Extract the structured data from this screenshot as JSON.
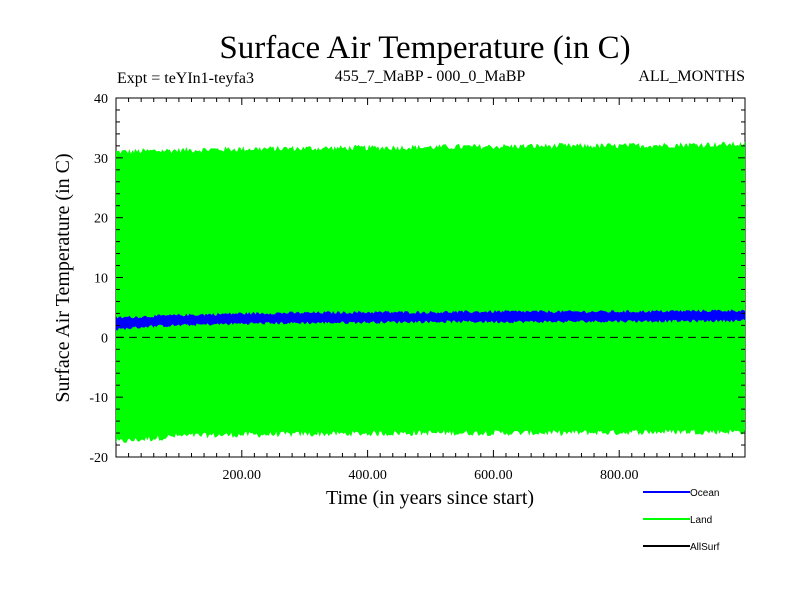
{
  "chart_data": {
    "type": "area",
    "title": "Surface Air Temperature (in C)",
    "subtitle_left": "Expt = teYIn1-teyfa3",
    "subtitle_center": "455_7_MaBP - 000_0_MaBP",
    "subtitle_right": "ALL_MONTHS",
    "xlabel": "Time (in years since start)",
    "ylabel": "Surface Air Temperature (in C)",
    "xlim": [
      0,
      1000
    ],
    "ylim": [
      -20,
      40
    ],
    "xticks": [
      200,
      400,
      600,
      800
    ],
    "xtick_labels": [
      "200.00",
      "400.00",
      "600.00",
      "800.00"
    ],
    "yticks": [
      -20,
      -10,
      0,
      10,
      20,
      30,
      40
    ],
    "ytick_labels": [
      "-20",
      "-10",
      "0",
      "10",
      "20",
      "30",
      "40"
    ],
    "reference_line": {
      "y": 0,
      "style": "dashed"
    },
    "series": [
      {
        "name": "Land",
        "color": "#00ff00",
        "description": "seasonal oscillation band (min/max envelope)",
        "x": [
          0,
          100,
          200,
          300,
          400,
          500,
          600,
          700,
          800,
          900,
          1000
        ],
        "upper": [
          31.0,
          31.3,
          31.5,
          31.6,
          31.7,
          31.8,
          31.9,
          32.0,
          32.0,
          32.2,
          32.3
        ],
        "lower": [
          -17.5,
          -16.5,
          -16.3,
          -16.2,
          -16.1,
          -16.0,
          -16.0,
          -16.0,
          -15.9,
          -15.8,
          -15.8
        ]
      },
      {
        "name": "Ocean",
        "color": "#0000ff",
        "description": "seasonal oscillation band (min/max envelope)",
        "x": [
          0,
          50,
          100,
          200,
          300,
          400,
          500,
          600,
          700,
          800,
          900,
          1000
        ],
        "upper": [
          3.3,
          3.5,
          3.7,
          4.0,
          4.1,
          4.2,
          4.2,
          4.3,
          4.3,
          4.3,
          4.4,
          4.5
        ],
        "lower": [
          1.3,
          1.8,
          2.0,
          2.3,
          2.4,
          2.5,
          2.6,
          2.6,
          2.6,
          2.7,
          2.7,
          2.8
        ]
      },
      {
        "name": "AllSurf",
        "color": "#000000",
        "description": "not visible in plot area",
        "x": [],
        "values": []
      }
    ],
    "legend": {
      "placement": "bottom-right",
      "entries": [
        {
          "label": "Ocean",
          "color": "#0000ff"
        },
        {
          "label": "Land",
          "color": "#00ff00"
        },
        {
          "label": "AllSurf",
          "color": "#000000"
        }
      ]
    }
  }
}
